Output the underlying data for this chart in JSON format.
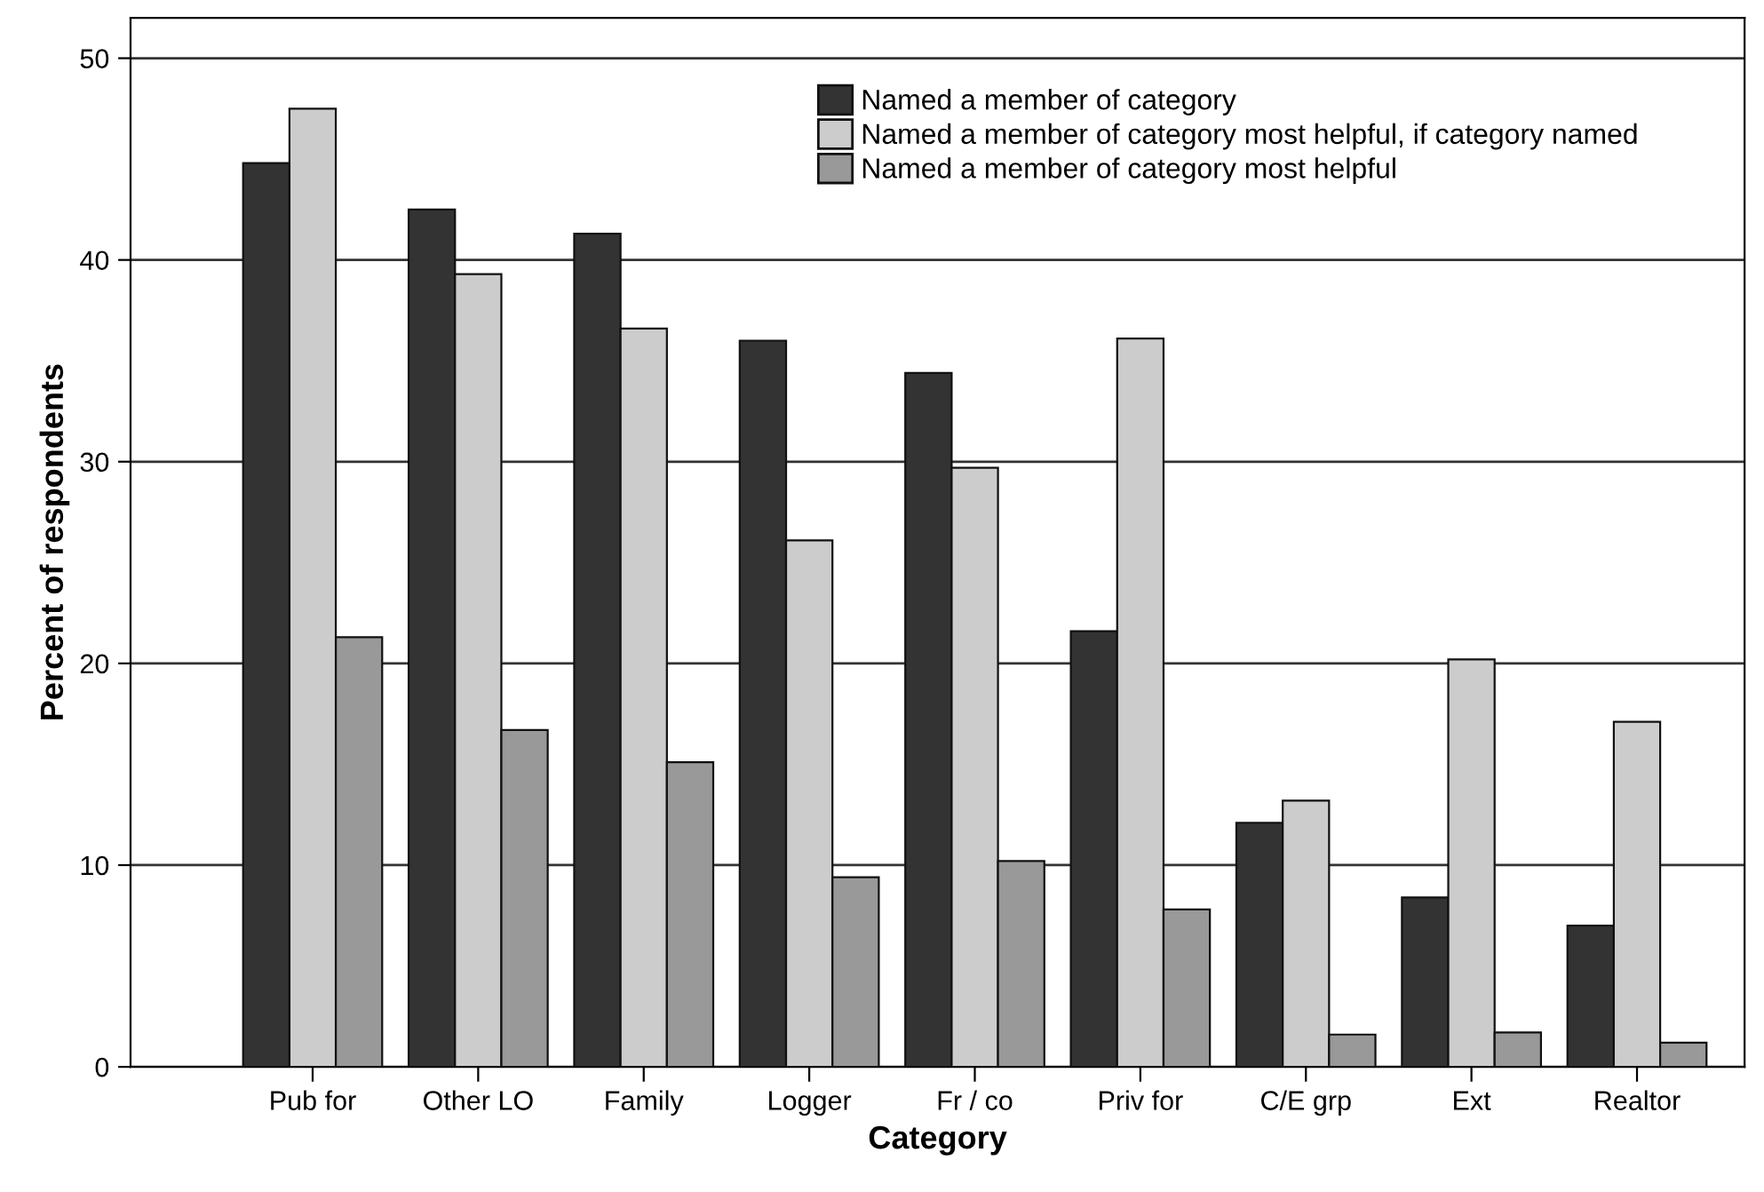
{
  "chart_data": {
    "type": "bar",
    "xlabel": "Category",
    "ylabel": "Percent of respondents",
    "categories": [
      "Pub for",
      "Other LO",
      "Family",
      "Logger",
      "Fr / co",
      "Priv for",
      "C/E grp",
      "Ext",
      "Realtor"
    ],
    "series": [
      {
        "name": "Named a member of category",
        "color": "#333333",
        "values": [
          44.8,
          42.5,
          41.3,
          36.0,
          34.4,
          21.6,
          12.1,
          8.4,
          7.0
        ]
      },
      {
        "name": "Named a member of category most helpful, if category named",
        "color": "#cccccc",
        "values": [
          47.5,
          39.3,
          36.6,
          26.1,
          29.7,
          36.1,
          13.2,
          20.2,
          17.1
        ]
      },
      {
        "name": "Named a member of category most helpful",
        "color": "#999999",
        "values": [
          21.3,
          16.7,
          15.1,
          9.4,
          10.2,
          7.8,
          1.6,
          1.7,
          1.2
        ]
      }
    ],
    "ylim": [
      0,
      52
    ],
    "yticks": [
      0,
      10,
      20,
      30,
      40,
      50
    ],
    "grid": "y",
    "legend": "top right"
  }
}
